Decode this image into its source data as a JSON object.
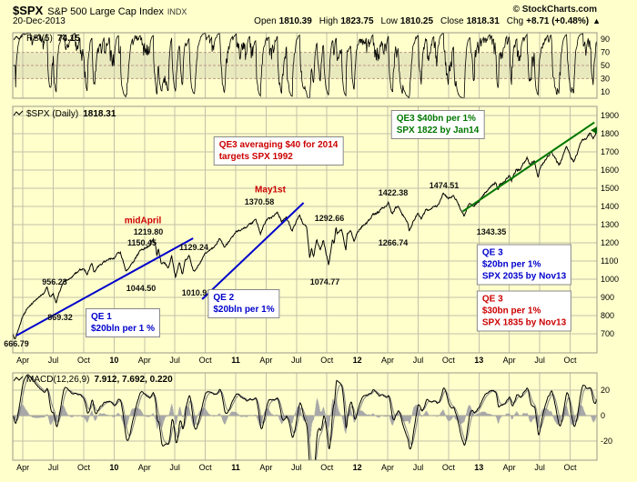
{
  "header": {
    "symbol": "$SPX",
    "name": "S&P 500 Large Cap Index",
    "exchange": "INDX",
    "credit": "© StockCharts.com",
    "date": "20-Dec-2013",
    "quote_items": [
      {
        "label": "Open",
        "value": "1810.39"
      },
      {
        "label": "High",
        "value": "1823.75"
      },
      {
        "label": "Low",
        "value": "1810.25"
      },
      {
        "label": "Close",
        "value": "1818.31"
      },
      {
        "label": "Chg",
        "value": "+8.71 (+0.48%)"
      }
    ],
    "quote_arrow": "▲"
  },
  "colors": {
    "background": "#FFFFCC",
    "grid": "#C2C2A8",
    "border": "#999988",
    "rsi_line": "#000000",
    "rsi_band": "rgba(120,120,120,0.16)",
    "rsi_threshold": "#BB9988",
    "price_line": "#000000",
    "trend_blue": "#0000CC",
    "trend_green": "#007700",
    "annotation_red": "#CC0000",
    "annotation_blue": "#0000CC",
    "annotation_green": "#007700",
    "macd_line": "#000000",
    "macd_signal": "#8A8A8A",
    "macd_hist": "#A8A8A8",
    "zero_line": "#999988",
    "last_price_arrow": "#006600"
  },
  "chart_data": [
    {
      "id": "rsi",
      "type": "line",
      "panel": "top",
      "title": "RSI(5)",
      "value_text": "74.15",
      "current_value": 74.15,
      "ylim": [
        0,
        100
      ],
      "yticks": [
        90,
        70,
        50,
        30,
        10
      ],
      "overbought": 70,
      "midline": 50,
      "oversold": 30,
      "note": "5-period RSI of daily $SPX closes; oscillates rapidly between ~10 and ~95 over the whole range, last value 74.15"
    },
    {
      "id": "price",
      "type": "line",
      "panel": "main",
      "title": "$SPX (Daily)",
      "value_text": "1818.31",
      "current_value": 1818.31,
      "x_start": "Mar-2009",
      "x_end": "20-Dec-2013",
      "x_total_months": 57.65,
      "ylim": [
        595,
        1950
      ],
      "yticks": [
        1900,
        1800,
        1700,
        1600,
        1500,
        1400,
        1300,
        1200,
        1100,
        1000,
        900,
        800,
        700
      ],
      "xticks": [
        {
          "m": 1,
          "label": "Apr"
        },
        {
          "m": 4,
          "label": "Jul"
        },
        {
          "m": 7,
          "label": "Oct"
        },
        {
          "m": 10,
          "label": "10",
          "bold": true
        },
        {
          "m": 13,
          "label": "Apr"
        },
        {
          "m": 16,
          "label": "Jul"
        },
        {
          "m": 19,
          "label": "Oct"
        },
        {
          "m": 22,
          "label": "11",
          "bold": true
        },
        {
          "m": 25,
          "label": "Apr"
        },
        {
          "m": 28,
          "label": "Jul"
        },
        {
          "m": 31,
          "label": "Oct"
        },
        {
          "m": 34,
          "label": "12",
          "bold": true
        },
        {
          "m": 37,
          "label": "Apr"
        },
        {
          "m": 40,
          "label": "Jul"
        },
        {
          "m": 43,
          "label": "Oct"
        },
        {
          "m": 46,
          "label": "13",
          "bold": true
        },
        {
          "m": 49,
          "label": "Apr"
        },
        {
          "m": 52,
          "label": "Jul"
        },
        {
          "m": 55,
          "label": "Oct"
        }
      ],
      "anchors": [
        [
          0,
          700
        ],
        [
          0.2,
          666.79
        ],
        [
          0.6,
          730
        ],
        [
          1,
          798
        ],
        [
          1.5,
          842
        ],
        [
          2,
          872
        ],
        [
          2.5,
          902
        ],
        [
          3,
          919
        ],
        [
          3.37,
          956.23
        ],
        [
          3.7,
          903
        ],
        [
          4,
          919
        ],
        [
          4.27,
          869.32
        ],
        [
          4.6,
          930
        ],
        [
          5,
          987
        ],
        [
          5.5,
          1002
        ],
        [
          6,
          1020
        ],
        [
          6.6,
          1052
        ],
        [
          7,
          1057
        ],
        [
          7.35,
          1030
        ],
        [
          7.8,
          1092
        ],
        [
          8,
          1036
        ],
        [
          8.5,
          1073
        ],
        [
          9,
          1095
        ],
        [
          9.5,
          1110
        ],
        [
          10,
          1115
        ],
        [
          10.3,
          1138
        ],
        [
          10.62,
          1150.45
        ],
        [
          11,
          1073
        ],
        [
          11.18,
          1044.5
        ],
        [
          11.7,
          1080
        ],
        [
          12,
          1104
        ],
        [
          12.5,
          1152
        ],
        [
          13,
          1169
        ],
        [
          13.5,
          1187
        ],
        [
          13.85,
          1219.8
        ],
        [
          14.1,
          1186
        ],
        [
          14.22,
          1128
        ],
        [
          14.38,
          1168
        ],
        [
          14.65,
          1085
        ],
        [
          15,
          1089
        ],
        [
          15.35,
          1062
        ],
        [
          15.68,
          1129.24
        ],
        [
          16,
          1030
        ],
        [
          16.07,
          1010.91
        ],
        [
          16.45,
          1096
        ],
        [
          16.75,
          1022
        ],
        [
          17,
          1101
        ],
        [
          17.4,
          1128
        ],
        [
          17.82,
          1047
        ],
        [
          18,
          1049
        ],
        [
          18.4,
          1082
        ],
        [
          19,
          1141
        ],
        [
          19.5,
          1163
        ],
        [
          20,
          1183
        ],
        [
          20.4,
          1226
        ],
        [
          20.85,
          1177
        ],
        [
          21,
          1180
        ],
        [
          21.5,
          1223
        ],
        [
          22,
          1257
        ],
        [
          22.5,
          1272
        ],
        [
          23,
          1286
        ],
        [
          23.6,
          1308
        ],
        [
          24,
          1327
        ],
        [
          24.45,
          1252
        ],
        [
          25,
          1325
        ],
        [
          25.5,
          1337
        ],
        [
          26,
          1363
        ],
        [
          26.07,
          1370.58
        ],
        [
          26.55,
          1318
        ],
        [
          27,
          1345
        ],
        [
          27.55,
          1262
        ],
        [
          28,
          1320
        ],
        [
          28.28,
          1354
        ],
        [
          28.7,
          1300
        ],
        [
          29,
          1292
        ],
        [
          29.3,
          1119
        ],
        [
          29.48,
          1172
        ],
        [
          29.68,
          1121
        ],
        [
          30,
          1218
        ],
        [
          30.35,
          1160
        ],
        [
          30.65,
          1218
        ],
        [
          30.92,
          1139
        ],
        [
          31,
          1131
        ],
        [
          31.17,
          1074.77
        ],
        [
          31.55,
          1225
        ],
        [
          31.72,
          1197
        ],
        [
          31.9,
          1292.66
        ],
        [
          32,
          1253
        ],
        [
          32.45,
          1275
        ],
        [
          32.87,
          1158
        ],
        [
          33,
          1247
        ],
        [
          33.35,
          1266
        ],
        [
          33.68,
          1202
        ],
        [
          34,
          1257
        ],
        [
          34.5,
          1292
        ],
        [
          35,
          1312
        ],
        [
          35.5,
          1352
        ],
        [
          36,
          1365
        ],
        [
          36.5,
          1392
        ],
        [
          37,
          1408
        ],
        [
          37.07,
          1422.38
        ],
        [
          37.45,
          1357
        ],
        [
          37.75,
          1392
        ],
        [
          38,
          1397
        ],
        [
          38.5,
          1353
        ],
        [
          39,
          1310
        ],
        [
          39.12,
          1266.74
        ],
        [
          39.55,
          1318
        ],
        [
          40,
          1362
        ],
        [
          40.35,
          1334
        ],
        [
          40.8,
          1388
        ],
        [
          41,
          1379
        ],
        [
          41.5,
          1398
        ],
        [
          42,
          1406
        ],
        [
          42.48,
          1474.51
        ],
        [
          43,
          1440
        ],
        [
          43.5,
          1460
        ],
        [
          44,
          1412
        ],
        [
          44.55,
          1343.35
        ],
        [
          45,
          1416
        ],
        [
          45.45,
          1398
        ],
        [
          46,
          1426
        ],
        [
          46.6,
          1472
        ],
        [
          47,
          1498
        ],
        [
          47.65,
          1531
        ],
        [
          47.9,
          1488
        ],
        [
          48,
          1514
        ],
        [
          48.6,
          1544
        ],
        [
          49,
          1569
        ],
        [
          49.2,
          1541
        ],
        [
          49.65,
          1597
        ],
        [
          50,
          1597
        ],
        [
          50.75,
          1669
        ],
        [
          51,
          1630
        ],
        [
          51.45,
          1648
        ],
        [
          51.85,
          1560
        ],
        [
          52,
          1606
        ],
        [
          52.6,
          1660
        ],
        [
          53,
          1685
        ],
        [
          53.1,
          1706
        ],
        [
          53.9,
          1627
        ],
        [
          54,
          1633
        ],
        [
          54.65,
          1729
        ],
        [
          55,
          1681
        ],
        [
          55.35,
          1646
        ],
        [
          55.8,
          1705
        ],
        [
          56,
          1756
        ],
        [
          56.55,
          1771
        ],
        [
          57,
          1805
        ],
        [
          57.3,
          1775
        ],
        [
          57.65,
          1818.31
        ]
      ],
      "swing_labels": [
        {
          "text": "666.79",
          "value": 666.79,
          "x": 18,
          "y": 378
        },
        {
          "text": "956.23",
          "value": 956.23,
          "x": 60,
          "y": 310
        },
        {
          "text": "869.32",
          "value": 869.32,
          "x": 66,
          "y": 349
        },
        {
          "text": "1219.80",
          "value": 1219.8,
          "x": 163,
          "y": 255
        },
        {
          "text": "1150.45",
          "value": 1150.45,
          "x": 156,
          "y": 267
        },
        {
          "text": "1044.50",
          "value": 1044.5,
          "x": 155,
          "y": 317
        },
        {
          "text": "1129.24",
          "value": 1129.24,
          "x": 213,
          "y": 272
        },
        {
          "text": "1010.91",
          "value": 1010.91,
          "x": 216,
          "y": 322
        },
        {
          "text": "1370.58",
          "value": 1370.58,
          "x": 285,
          "y": 222
        },
        {
          "text": "1292.66",
          "value": 1292.66,
          "x": 362,
          "y": 240
        },
        {
          "text": "1074.77",
          "value": 1074.77,
          "x": 357,
          "y": 310
        },
        {
          "text": "1422.38",
          "value": 1422.38,
          "x": 432,
          "y": 212
        },
        {
          "text": "1266.74",
          "value": 1266.74,
          "x": 432,
          "y": 267
        },
        {
          "text": "1474.51",
          "value": 1474.51,
          "x": 488,
          "y": 204
        },
        {
          "text": "1343.35",
          "value": 1343.35,
          "x": 540,
          "y": 255
        }
      ],
      "trendlines": [
        {
          "name": "QE1",
          "color": "#0000CC",
          "width": 2,
          "from": [
            0.36,
            690
          ],
          "to": [
            17.8,
            1225
          ]
        },
        {
          "name": "QE2",
          "color": "#0000CC",
          "width": 2,
          "from": [
            18.7,
            890
          ],
          "to": [
            28.7,
            1420
          ]
        },
        {
          "name": "QE3",
          "color": "#007700",
          "width": 2,
          "from": [
            44.4,
            1372
          ],
          "to": [
            57.4,
            1862
          ]
        }
      ],
      "annotations": [
        {
          "id": "midapril",
          "lines": [
            "midApril"
          ],
          "color": "#CC0000",
          "x": 157,
          "y": 243,
          "box": false
        },
        {
          "id": "may1st",
          "lines": [
            "May1st"
          ],
          "color": "#CC0000",
          "x": 297,
          "y": 209,
          "box": false
        },
        {
          "id": "qe3-forecast-2014",
          "lines": [
            "QE3 averaging $40 for 2014",
            "targets SPX 1992"
          ],
          "color": "#CC0000",
          "x": 306,
          "y": 166,
          "box": true
        },
        {
          "id": "qe3-target-jan14",
          "lines": [
            "QE3 $40bn per 1%",
            "SPX 1822 by Jan14"
          ],
          "color": "#007700",
          "x": 481,
          "y": 137,
          "box": true
        },
        {
          "id": "qe1",
          "lines": [
            "QE 1",
            "$20bln per 1 %"
          ],
          "color": "#0000CC",
          "x": 135,
          "y": 355,
          "box": true
        },
        {
          "id": "qe2",
          "lines": [
            "QE 2",
            "$20bln per 1%"
          ],
          "color": "#0000CC",
          "x": 268,
          "y": 334,
          "box": true
        },
        {
          "id": "qe3-scenario-20bn",
          "lines": [
            "QE 3",
            "$20bn per 1%",
            "SPX 2035 by Nov13"
          ],
          "color": "#0000CC",
          "x": 576,
          "y": 291,
          "box": true
        },
        {
          "id": "qe3-scenario-30bn",
          "lines": [
            "QE 3",
            "$30bn per 1%",
            "SPX 1835 by Nov13"
          ],
          "color": "#CC0000",
          "x": 576,
          "y": 342,
          "box": true
        }
      ]
    },
    {
      "id": "macd",
      "type": "line",
      "panel": "bottom",
      "title": "MACD(12,26,9)",
      "value_text": "7.912, 7.692, 0.220",
      "macd": 7.912,
      "signal": 7.692,
      "histogram": 0.22,
      "ylim": [
        -35,
        33.6
      ],
      "yticks": [
        20,
        0,
        -20
      ],
      "note": "MACD(12,26,9) of the daily series with gray signal line and gray histogram around zero; deepest trough near Aug-2011"
    }
  ]
}
